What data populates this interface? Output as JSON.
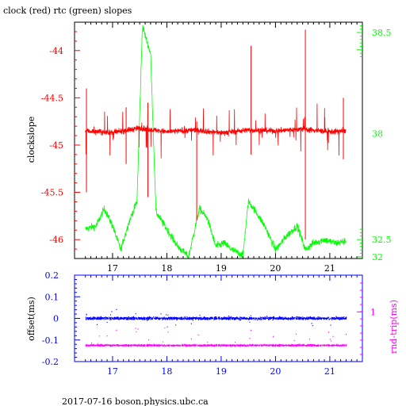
{
  "title": "clock (red) rtc (green) slopes",
  "footer": "2017-07-16  boson.physics.ubc.ca",
  "colors": {
    "clock": "#ff0000",
    "rtc": "#00ff00",
    "offset": "#0000ff",
    "rndtrip": "#ff00ff",
    "axes": "#000000"
  },
  "chart_data": [
    {
      "type": "line",
      "title": "clock (red) rtc (green) slopes",
      "ylabel": "clockslope",
      "y2label": "",
      "xlim": [
        16.3,
        21.6
      ],
      "ylim": [
        -46.2,
        -43.7
      ],
      "y2lim": [
        31.95,
        38.8
      ],
      "xticks": [
        17,
        18,
        19,
        20,
        21
      ],
      "yticks": [
        -44,
        -44.5,
        -45,
        -45.5,
        -46
      ],
      "y2ticks": [
        38.5,
        38,
        32.5,
        32
      ],
      "y2ticklabels": [
        "38.5",
        "38",
        "32.5",
        "32"
      ],
      "series": [
        {
          "name": "clock",
          "axis": "left",
          "x": [
            16.5,
            17.0,
            17.5,
            18.0,
            18.5,
            19.0,
            19.5,
            20.0,
            20.5,
            21.0,
            21.3
          ],
          "y": [
            -44.85,
            -44.87,
            -44.82,
            -44.86,
            -44.84,
            -44.87,
            -44.84,
            -44.85,
            -44.83,
            -44.86,
            -44.85
          ]
        },
        {
          "name": "rtc",
          "axis": "right",
          "x": [
            16.5,
            16.7,
            16.85,
            17.0,
            17.15,
            17.3,
            17.45,
            17.55,
            17.62,
            17.7,
            17.8,
            18.0,
            18.2,
            18.4,
            18.6,
            18.75,
            18.9,
            19.05,
            19.2,
            19.4,
            19.5,
            19.6,
            19.8,
            20.0,
            20.2,
            20.4,
            20.55,
            20.7,
            20.9,
            21.1,
            21.3
          ],
          "y": [
            32.8,
            32.9,
            33.4,
            32.9,
            32.2,
            33.0,
            33.6,
            38.7,
            38.3,
            37.9,
            33.3,
            32.8,
            32.3,
            32.0,
            33.4,
            33.1,
            32.3,
            32.4,
            32.2,
            32.05,
            33.6,
            33.4,
            32.9,
            32.2,
            32.6,
            32.9,
            32.2,
            32.4,
            32.5,
            32.4,
            32.45
          ]
        }
      ]
    },
    {
      "type": "scatter",
      "ylabel": "offset(ms)",
      "y2label": "rnd-trip(ms)",
      "xlim": [
        16.3,
        21.6
      ],
      "ylim": [
        -0.2,
        0.2
      ],
      "xticks": [
        17,
        18,
        19,
        20,
        21
      ],
      "yticks": [
        0.2,
        0.1,
        0,
        -0.1,
        -0.2
      ],
      "yticklabels": [
        "0.2",
        "0.1",
        "0",
        "-0.1",
        "-0.2"
      ],
      "y2ticks": [
        1
      ],
      "y2ticklabels": [
        "1"
      ],
      "series": [
        {
          "name": "offset",
          "x": [
            16.5,
            21.3
          ],
          "y": [
            0.0,
            0.0
          ]
        },
        {
          "name": "rnd-trip",
          "x": [
            16.5,
            21.3
          ],
          "y": [
            -0.125,
            -0.125
          ]
        }
      ]
    }
  ]
}
